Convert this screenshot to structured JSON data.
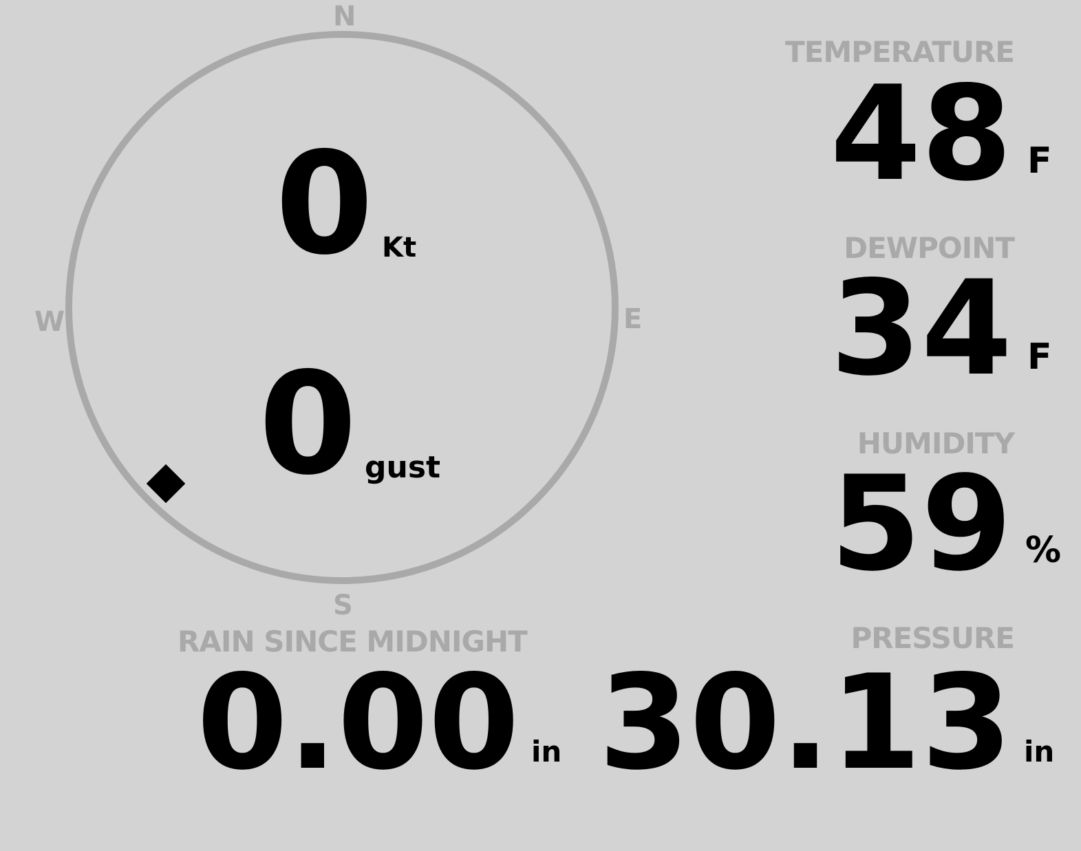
{
  "wind": {
    "speed": "0",
    "speed_unit": "Kt",
    "gust": "0",
    "gust_unit": "gust",
    "direction_deg": 225,
    "compass": {
      "n": "N",
      "e": "E",
      "s": "S",
      "w": "W"
    }
  },
  "temperature": {
    "label": "TEMPERATURE",
    "value": "48",
    "unit": "F"
  },
  "dewpoint": {
    "label": "DEWPOINT",
    "value": "34",
    "unit": "F"
  },
  "humidity": {
    "label": "HUMIDITY",
    "value": "59",
    "unit": "%"
  },
  "rain": {
    "label": "RAIN SINCE MIDNIGHT",
    "value": "0.00",
    "unit": "in"
  },
  "pressure": {
    "label": "PRESSURE",
    "value": "30.13",
    "unit": "in"
  },
  "colors": {
    "background": "#d3d3d3",
    "label": "#a9a9a9",
    "value": "#000000"
  }
}
